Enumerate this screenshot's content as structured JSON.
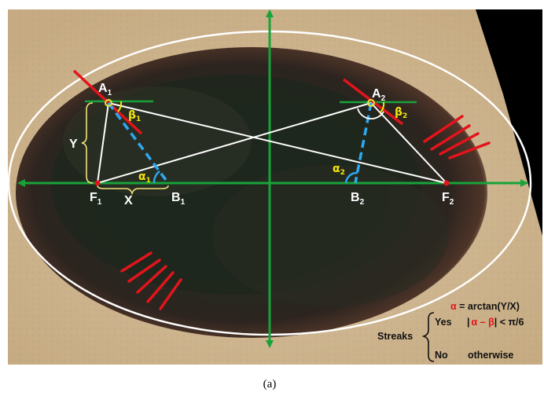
{
  "labels": {
    "A1": "A",
    "A1_sub": "1",
    "A2": "A",
    "A2_sub": "2",
    "F1": "F",
    "F1_sub": "1",
    "F2": "F",
    "F2_sub": "2",
    "B1": "B",
    "B1_sub": "1",
    "B2": "B",
    "B2_sub": "2",
    "X": "X",
    "Y": "Y",
    "alpha1": "α",
    "alpha1_sub": "1",
    "alpha2": "α",
    "alpha2_sub": "2",
    "beta1": "β",
    "beta1_sub": "1",
    "beta2": "β",
    "beta2_sub": "2"
  },
  "legend": {
    "formula_alpha": "α",
    "formula_rest": " = arctan(Y/X)",
    "streaks": "Streaks",
    "yes": "Yes",
    "abs_open": "|",
    "abs_expr": "α – β",
    "abs_close": "| < π/6",
    "no": "No",
    "otherwise": "otherwise"
  },
  "caption": "(a)",
  "colors": {
    "axis": "#18a33a",
    "tangent": "#e3141b",
    "normal": "#2fa8f0",
    "ellipse": "#ffffff",
    "marker": "#e8e03a"
  }
}
